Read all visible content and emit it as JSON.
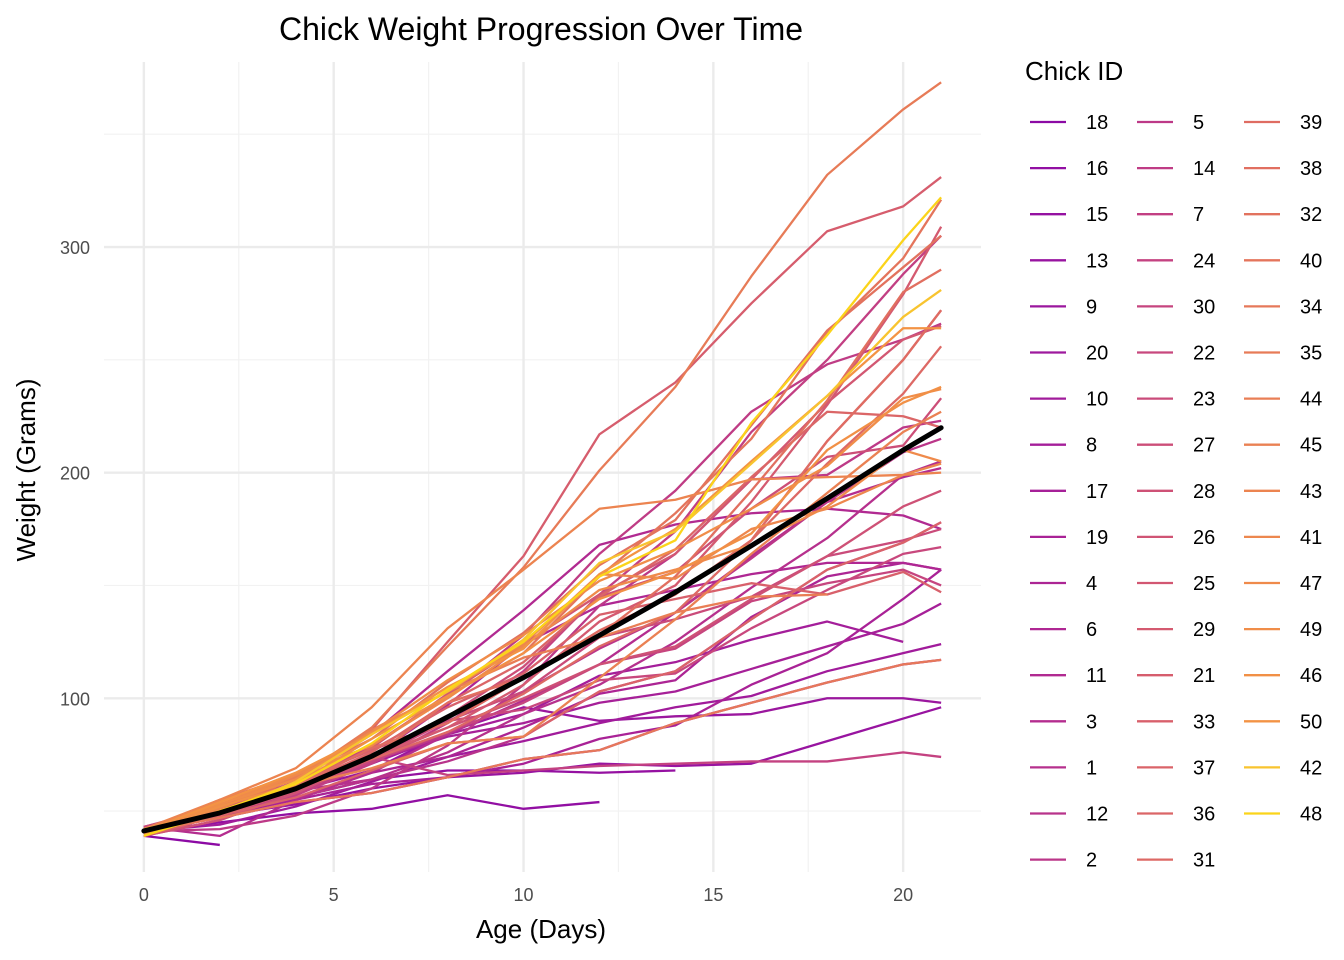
{
  "chart_data": {
    "type": "line",
    "title": "Chick Weight Progression Over Time",
    "xlabel": "Age (Days)",
    "ylabel": "Weight (Grams)",
    "xlim": [
      -1.05,
      22.05
    ],
    "ylim": [
      23,
      382
    ],
    "x_ticks": [
      0,
      5,
      10,
      15,
      20
    ],
    "y_ticks": [
      100,
      200,
      300
    ],
    "grid": true,
    "legend_title": "Chick ID",
    "legend_position": "right",
    "legend_order": [
      "18",
      "16",
      "15",
      "13",
      "9",
      "20",
      "10",
      "8",
      "17",
      "19",
      "4",
      "6",
      "11",
      "3",
      "1",
      "12",
      "2",
      "5",
      "14",
      "7",
      "24",
      "30",
      "22",
      "23",
      "27",
      "28",
      "26",
      "25",
      "29",
      "21",
      "33",
      "37",
      "36",
      "31",
      "39",
      "38",
      "32",
      "40",
      "34",
      "35",
      "44",
      "45",
      "43",
      "41",
      "47",
      "49",
      "46",
      "50",
      "42",
      "48"
    ],
    "times": [
      0,
      2,
      4,
      6,
      8,
      10,
      12,
      14,
      16,
      18,
      20,
      21
    ],
    "series": [
      {
        "name": "18",
        "color": "#8c0aa4",
        "values": [
          39,
          35
        ]
      },
      {
        "name": "16",
        "color": "#920fa3",
        "values": [
          41,
          45,
          49,
          51,
          57,
          51,
          54
        ]
      },
      {
        "name": "15",
        "color": "#9511a1",
        "values": [
          41,
          49,
          56,
          64,
          68,
          68,
          67,
          68
        ]
      },
      {
        "name": "13",
        "color": "#9814a0",
        "values": [
          41,
          48,
          53,
          60,
          65,
          67,
          71,
          70,
          71,
          81,
          91,
          96
        ]
      },
      {
        "name": "9",
        "color": "#9b179e",
        "values": [
          42,
          51,
          59,
          68,
          85,
          96,
          90,
          92,
          93,
          100,
          100,
          98
        ]
      },
      {
        "name": "20",
        "color": "#9e199d",
        "values": [
          41,
          47,
          54,
          58,
          65,
          73,
          77,
          89,
          98,
          107,
          115,
          117
        ]
      },
      {
        "name": "10",
        "color": "#a11b9b",
        "values": [
          41,
          44,
          52,
          63,
          74,
          81,
          89,
          96,
          101,
          112,
          120,
          124
        ]
      },
      {
        "name": "8",
        "color": "#a41e9a",
        "values": [
          42,
          50,
          61,
          71,
          84,
          93,
          110,
          116,
          126,
          134,
          125
        ]
      },
      {
        "name": "17",
        "color": "#a62098",
        "values": [
          42,
          51,
          61,
          72,
          83,
          89,
          98,
          103,
          113,
          123,
          133,
          142
        ]
      },
      {
        "name": "19",
        "color": "#a92296",
        "values": [
          43,
          48,
          55,
          62,
          65,
          71,
          82,
          88,
          106,
          120,
          144,
          157
        ]
      },
      {
        "name": "4",
        "color": "#ac2594",
        "values": [
          42,
          49,
          56,
          67,
          74,
          87,
          102,
          108,
          136,
          154,
          160,
          157
        ]
      },
      {
        "name": "6",
        "color": "#af2793",
        "values": [
          41,
          49,
          59,
          74,
          97,
          124,
          141,
          148,
          155,
          160,
          160,
          157
        ]
      },
      {
        "name": "11",
        "color": "#b12a91",
        "values": [
          43,
          51,
          63,
          84,
          112,
          139,
          168,
          177,
          182,
          184,
          181,
          175
        ]
      },
      {
        "name": "3",
        "color": "#b42d8f",
        "values": [
          43,
          39,
          55,
          67,
          84,
          99,
          115,
          138,
          163,
          187,
          198,
          202
        ]
      },
      {
        "name": "1",
        "color": "#b6308d",
        "values": [
          42,
          51,
          59,
          64,
          76,
          93,
          106,
          125,
          149,
          171,
          199,
          205
        ]
      },
      {
        "name": "12",
        "color": "#b8338b",
        "values": [
          41,
          49,
          56,
          64,
          72,
          83,
          103,
          112,
          135,
          157,
          169,
          178
        ]
      },
      {
        "name": "2",
        "color": "#bb3689",
        "values": [
          40,
          49,
          58,
          72,
          84,
          103,
          122,
          138,
          162,
          187,
          209,
          215
        ]
      },
      {
        "name": "5",
        "color": "#bd3987",
        "values": [
          41,
          42,
          48,
          60,
          79,
          106,
          141,
          164,
          197,
          199,
          220,
          223
        ]
      },
      {
        "name": "14",
        "color": "#bf3c85",
        "values": [
          41,
          49,
          62,
          79,
          101,
          128,
          164,
          192,
          227,
          248,
          259,
          266
        ]
      },
      {
        "name": "7",
        "color": "#c23f83",
        "values": [
          41,
          49,
          57,
          71,
          89,
          112,
          146,
          174,
          218,
          250,
          288,
          305
        ]
      },
      {
        "name": "24",
        "color": "#c44281",
        "values": [
          42,
          52,
          58,
          74,
          66,
          68,
          70,
          71,
          72,
          72,
          76,
          74
        ]
      },
      {
        "name": "30",
        "color": "#c6457f",
        "values": [
          42,
          48,
          59,
          72,
          85,
          98,
          115,
          122,
          143,
          151,
          157,
          150
        ]
      },
      {
        "name": "22",
        "color": "#c8487d",
        "values": [
          41,
          55,
          64,
          77,
          90,
          95,
          108,
          111,
          131,
          148,
          164,
          167
        ]
      },
      {
        "name": "23",
        "color": "#ca4b7a",
        "values": [
          43,
          52,
          61,
          73,
          90,
          103,
          127,
          135,
          145,
          163,
          170,
          175
        ]
      },
      {
        "name": "27",
        "color": "#cc4e78",
        "values": [
          39,
          46,
          58,
          73,
          92,
          114,
          145,
          156,
          184,
          207,
          212,
          233
        ]
      },
      {
        "name": "28",
        "color": "#ce5176",
        "values": [
          39,
          46,
          58,
          73,
          87,
          100,
          115,
          123,
          144,
          163,
          185,
          192
        ]
      },
      {
        "name": "26",
        "color": "#d05474",
        "values": [
          42,
          50,
          61,
          78,
          89,
          109,
          130,
          146,
          170,
          214,
          250,
          272
        ]
      },
      {
        "name": "25",
        "color": "#d25772",
        "values": [
          40,
          49,
          62,
          78,
          102,
          124,
          146,
          164,
          197,
          231,
          259,
          265
        ]
      },
      {
        "name": "29",
        "color": "#d45a70",
        "values": [
          39,
          48,
          59,
          74,
          87,
          106,
          134,
          150,
          187,
          230,
          279,
          309
        ]
      },
      {
        "name": "21",
        "color": "#d65d6d",
        "values": [
          40,
          50,
          62,
          86,
          125,
          163,
          217,
          240,
          275,
          307,
          318,
          331
        ]
      },
      {
        "name": "33",
        "color": "#d8606b",
        "values": [
          39,
          50,
          63,
          77,
          96,
          111,
          137,
          144,
          151,
          146,
          156,
          147
        ]
      },
      {
        "name": "37",
        "color": "#da6369",
        "values": [
          41,
          48,
          56,
          68,
          80,
          83,
          103,
          112,
          135,
          157,
          169,
          178
        ]
      },
      {
        "name": "36",
        "color": "#db6667",
        "values": [
          39,
          48,
          61,
          76,
          98,
          116,
          145,
          166,
          198,
          227,
          225,
          220
        ]
      },
      {
        "name": "31",
        "color": "#dd6965",
        "values": [
          42,
          53,
          62,
          73,
          85,
          102,
          123,
          138,
          170,
          204,
          235,
          256
        ]
      },
      {
        "name": "39",
        "color": "#df6c62",
        "values": [
          42,
          50,
          61,
          78,
          89,
          109,
          130,
          146,
          170,
          214,
          250,
          272
        ]
      },
      {
        "name": "38",
        "color": "#e16f60",
        "values": [
          41,
          49,
          61,
          74,
          98,
          109,
          128,
          154,
          192,
          232,
          280,
          290
        ]
      },
      {
        "name": "32",
        "color": "#e2725e",
        "values": [
          41,
          49,
          65,
          82,
          107,
          129,
          159,
          179,
          221,
          263,
          291,
          305
        ]
      },
      {
        "name": "40",
        "color": "#e4755c",
        "values": [
          41,
          55,
          66,
          79,
          101,
          120,
          154,
          182,
          215,
          262,
          295,
          321
        ]
      },
      {
        "name": "34",
        "color": "#e6785a",
        "values": [
          41,
          47,
          54,
          58,
          65,
          73,
          77,
          89,
          98,
          107,
          115,
          117
        ]
      },
      {
        "name": "35",
        "color": "#e77b57",
        "values": [
          41,
          53,
          64,
          87,
          123,
          158,
          201,
          238,
          287,
          332,
          361,
          373
        ]
      },
      {
        "name": "44",
        "color": "#e97e55",
        "values": [
          42,
          51,
          65,
          86,
          103,
          118,
          127,
          138,
          145,
          146
        ]
      },
      {
        "name": "45",
        "color": "#ea8153",
        "values": [
          41,
          50,
          61,
          69,
          80,
          83,
          109,
          135,
          164,
          191,
          218,
          227
        ]
      },
      {
        "name": "43",
        "color": "#ec8450",
        "values": [
          42,
          55,
          69,
          96,
          131,
          157,
          184,
          188,
          197,
          198,
          199,
          200
        ]
      },
      {
        "name": "41",
        "color": "#ed874e",
        "values": [
          42,
          51,
          66,
          85,
          103,
          124,
          155,
          153,
          175,
          184,
          199,
          204
        ]
      },
      {
        "name": "47",
        "color": "#ef8a4b",
        "values": [
          41,
          53,
          66,
          79,
          100,
          123,
          148,
          157,
          168,
          185,
          210,
          205
        ]
      },
      {
        "name": "49",
        "color": "#f08d49",
        "values": [
          40,
          53,
          64,
          85,
          108,
          128,
          152,
          166,
          184,
          203,
          233,
          237
        ]
      },
      {
        "name": "46",
        "color": "#f19046",
        "values": [
          40,
          52,
          62,
          82,
          101,
          120,
          144,
          156,
          173,
          210,
          231,
          238
        ]
      },
      {
        "name": "50",
        "color": "#f39344",
        "values": [
          41,
          54,
          67,
          84,
          105,
          122,
          155,
          175,
          205,
          234,
          264,
          264
        ]
      },
      {
        "name": "42",
        "color": "#f8c42f",
        "values": [
          42,
          49,
          63,
          84,
          103,
          126,
          160,
          174,
          204,
          234,
          269,
          281
        ]
      },
      {
        "name": "48",
        "color": "#fbd41a",
        "values": [
          39,
          50,
          62,
          80,
          104,
          125,
          154,
          170,
          222,
          261,
          303,
          322
        ]
      }
    ],
    "mean_line": {
      "color": "#000000",
      "values": [
        41.2,
        49.2,
        59.9,
        74.3,
        91.7,
        109.2,
        127.9,
        147.0,
        167.6,
        188.6,
        210.0,
        219.9
      ]
    }
  }
}
